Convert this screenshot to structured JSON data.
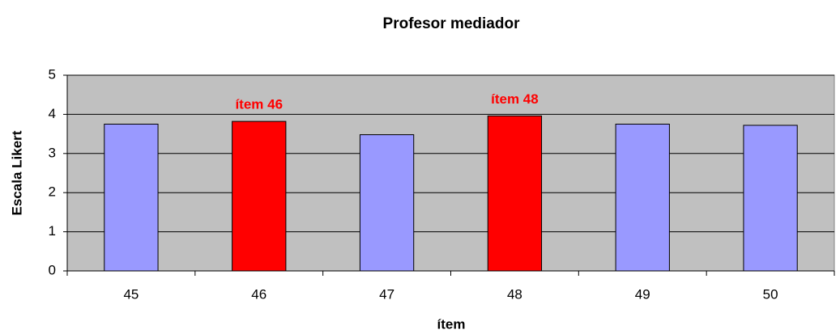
{
  "chart_data": {
    "type": "bar",
    "title": "Profesor mediador",
    "x_label": "ítem",
    "y_label": "Escala Likert",
    "categories": [
      "45",
      "46",
      "47",
      "48",
      "49",
      "50"
    ],
    "values": [
      3.75,
      3.82,
      3.48,
      3.96,
      3.75,
      3.72
    ],
    "colors": [
      "#9999ff",
      "#ff0000",
      "#9999ff",
      "#ff0000",
      "#9999ff",
      "#9999ff"
    ],
    "annotations": [
      {
        "text": "ítem 46",
        "category": "46"
      },
      {
        "text": "ítem 48",
        "category": "48"
      }
    ],
    "ylim": [
      0,
      5
    ],
    "yticks": [
      0,
      1,
      2,
      3,
      4,
      5
    ],
    "grid": true,
    "plot_background": "#c0c0c0"
  }
}
